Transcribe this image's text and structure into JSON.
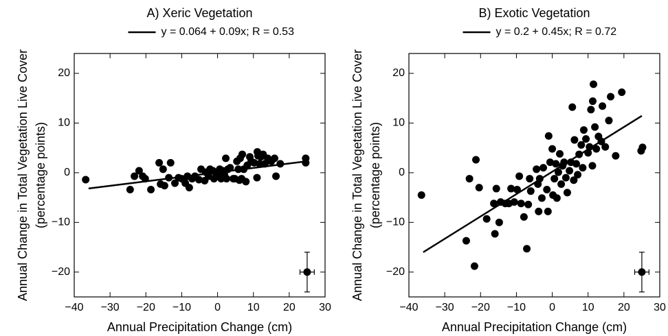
{
  "chart_data": [
    {
      "type": "scatter",
      "title": "A) Xeric Vegetation",
      "xlabel": "Annual Precipitation Change (cm)",
      "ylabel": [
        "Annual Change in Total Vegetation Live Cover",
        "(percentage points)"
      ],
      "xlim": [
        -40,
        30
      ],
      "ylim": [
        -25,
        24
      ],
      "xticks": [
        {
          "value": -40,
          "label": "−40"
        },
        {
          "value": -30,
          "label": "−30"
        },
        {
          "value": -20,
          "label": "−20"
        },
        {
          "value": -10,
          "label": "−10"
        },
        0,
        10,
        20,
        30
      ],
      "yticks": [
        {
          "value": -20,
          "label": "−20"
        },
        {
          "value": -10,
          "label": "−10"
        },
        0,
        10,
        20
      ],
      "color": "#000000",
      "x": [
        -36.8,
        -24.4,
        -23.2,
        -21.9,
        -20.9,
        -20.2,
        -18.6,
        -16.3,
        -15.9,
        -14.8,
        -15.2,
        -13.1,
        -13.6,
        -11.9,
        -10.9,
        -10,
        -9,
        -8.4,
        -7.9,
        -7.1,
        -6.3,
        -5.2,
        -4.6,
        -3.6,
        -3.3,
        -2.5,
        -2.1,
        -1.3,
        -1,
        -0.4,
        0.2,
        0.6,
        1,
        1.5,
        1.9,
        2.5,
        2.9,
        3.5,
        2.3,
        4.4,
        4.8,
        5.4,
        5.8,
        6.1,
        6.7,
        6.9,
        6.3,
        7.3,
        7.9,
        8.3,
        9,
        9.4,
        10.2,
        11,
        11.1,
        11.3,
        11.7,
        12.1,
        12.7,
        13.2,
        14,
        15,
        15.9,
        16.3,
        17.5,
        24.6,
        24.6
      ],
      "y": [
        -1.4,
        -3.4,
        -0.7,
        0.4,
        -0.7,
        -1.2,
        -3.4,
        2,
        -2.3,
        -2.6,
        0.7,
        2,
        -1,
        -2.1,
        -1,
        -1.2,
        -2.1,
        -0.7,
        -3,
        -1.2,
        -0.7,
        -1.4,
        0.7,
        -1.6,
        0.1,
        -0.7,
        0.7,
        0.4,
        -1.2,
        -0.1,
        -0.7,
        0.7,
        -1.2,
        0.4,
        -0.4,
        -1.2,
        0.7,
        1,
        2.9,
        -1.2,
        -1.2,
        2.3,
        0.7,
        -1.5,
        -1.2,
        3.7,
        2.9,
        0.7,
        -1.8,
        1.5,
        3.2,
        2.3,
        2,
        -1,
        4.2,
        3.4,
        1.8,
        3.2,
        3.7,
        1.8,
        2.9,
        2.3,
        2.9,
        -0.7,
        1.8,
        2.9,
        2
      ],
      "fit": {
        "name": "y = 0.064 + 0.09x; R = 0.53",
        "x": [
          -36,
          25
        ],
        "y": [
          -3.176,
          2.314
        ]
      },
      "error_point": {
        "x": 25,
        "y": -20,
        "xerr": 2,
        "yerr": 4
      }
    },
    {
      "type": "scatter",
      "title": "B) Exotic Vegetation",
      "xlabel": "Annual Precipitation Change (cm)",
      "ylabel": [
        "Annual Change in Total Vegetation Live Cover",
        "(percentage points)"
      ],
      "xlim": [
        -40,
        30
      ],
      "ylim": [
        -25,
        24
      ],
      "xticks": [
        {
          "value": -40,
          "label": "−40"
        },
        {
          "value": -30,
          "label": "−30"
        },
        {
          "value": -20,
          "label": "−20"
        },
        {
          "value": -10,
          "label": "−10"
        },
        0,
        10,
        20,
        30
      ],
      "yticks": [
        {
          "value": -20,
          "label": "−20"
        },
        {
          "value": -10,
          "label": "−10"
        },
        0,
        10,
        20
      ],
      "color": "#000000",
      "x": [
        -36.5,
        -24,
        -23.1,
        -21.7,
        -21.3,
        -20.4,
        -18.3,
        -16.3,
        -16,
        -15.6,
        -14.8,
        -14.4,
        -13.1,
        -12.1,
        -11.5,
        -10.6,
        -9.8,
        -9.2,
        -8.7,
        -7.9,
        -7.1,
        -6.7,
        -6.3,
        -6,
        -4.4,
        -4,
        -3.8,
        -3.5,
        -2.9,
        -2.5,
        -1.5,
        -1.2,
        -1,
        -0.6,
        0,
        0.2,
        0.6,
        1,
        1.3,
        1.7,
        2.1,
        2.5,
        2.9,
        3.3,
        3.8,
        4.2,
        4.8,
        5.2,
        5.6,
        6,
        6.2,
        6.7,
        7.1,
        7.5,
        8.1,
        8.5,
        8.8,
        9.4,
        10,
        10.4,
        10.8,
        11.2,
        11.3,
        11.5,
        11.9,
        12.3,
        12.9,
        13.7,
        14,
        14.8,
        15.8,
        16.3,
        17.7,
        19.4,
        24.8,
        25.2
      ],
      "y": [
        -4.5,
        -13.7,
        -1.2,
        -18.8,
        2.6,
        -3,
        -9.3,
        -6.2,
        -12.3,
        -3.2,
        -10,
        -5.9,
        -6.2,
        -6.2,
        -3.2,
        -5.9,
        -3.4,
        -0.7,
        -6.2,
        -8.9,
        -15.3,
        -6.4,
        -1.2,
        -3.7,
        0.7,
        -2.3,
        -7.8,
        -1.2,
        -5.1,
        1,
        -3.4,
        -7.8,
        7.4,
        2.1,
        4.8,
        -4.5,
        -1.2,
        1.8,
        -5.1,
        0.1,
        3.8,
        -2.3,
        1.4,
        2.1,
        -1,
        -4,
        0.4,
        2.1,
        13.2,
        -1.5,
        6.6,
        1.8,
        -0.4,
        3.7,
        5.6,
        1,
        8.6,
        6.8,
        4,
        5.2,
        12.7,
        1.4,
        14.4,
        17.8,
        9.2,
        4.8,
        7.3,
        6.3,
        13.4,
        5.2,
        10.5,
        15.3,
        3.4,
        16.2,
        4.4,
        5.1
      ],
      "fit": {
        "name": "y = 0.2 + 0.45x; R = 0.72",
        "x": [
          -36,
          25
        ],
        "y": [
          -16,
          11.45
        ]
      },
      "error_point": {
        "x": 25,
        "y": -20,
        "xerr": 2,
        "yerr": 4
      }
    }
  ]
}
